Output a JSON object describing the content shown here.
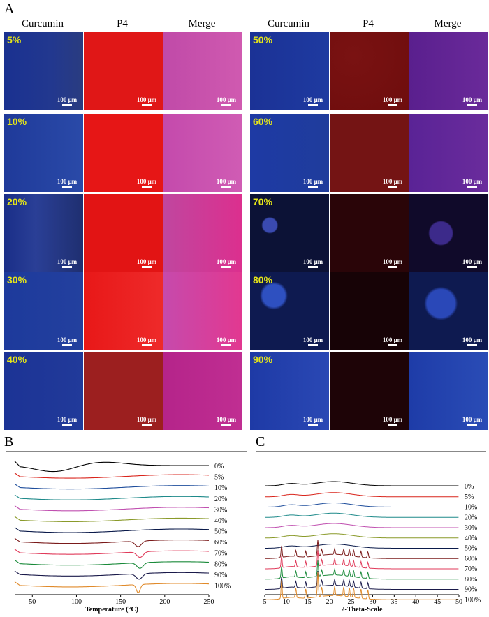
{
  "panel_a": {
    "letter": "A",
    "columns": [
      "Curcumin",
      "P4",
      "Merge"
    ],
    "scale_label": "100 μm",
    "left_rows": [
      "5%",
      "10%",
      "20%",
      "30%",
      "40%"
    ],
    "right_rows": [
      "50%",
      "60%",
      "70%",
      "80%",
      "90%"
    ]
  },
  "panel_b": {
    "letter": "B"
  },
  "panel_c": {
    "letter": "C"
  },
  "chart_data": [
    {
      "type": "line",
      "xlabel": "Temperature (°C)",
      "ylabel": "",
      "xlim": [
        30,
        250
      ],
      "x_ticks": [
        50,
        100,
        150,
        200,
        250
      ],
      "series_labels": [
        "0%",
        "5%",
        "10%",
        "20%",
        "30%",
        "40%",
        "50%",
        "60%",
        "70%",
        "80%",
        "90%",
        "100%"
      ],
      "colors": [
        "#000000",
        "#d9251c",
        "#1f4e9c",
        "#1e8a8a",
        "#c050b0",
        "#8a9a2a",
        "#0a1a4a",
        "#7a1a1a",
        "#e03a5a",
        "#1a8a3a",
        "#1a1a4a",
        "#e08a2a"
      ],
      "thermal_features": [
        {
          "label": "0%",
          "feature": "broad endotherm",
          "x": 75
        },
        {
          "label": "60%",
          "feature": "endotherm",
          "x": 170
        },
        {
          "label": "70%",
          "feature": "endotherm",
          "x": 172
        },
        {
          "label": "80%",
          "feature": "endotherm",
          "x": 172
        },
        {
          "label": "90%",
          "feature": "endotherm",
          "x": 171
        },
        {
          "label": "100%",
          "feature": "sharp endotherm",
          "x": 170
        }
      ]
    },
    {
      "type": "line",
      "xlabel": "2-Theta-Scale",
      "ylabel": "",
      "xlim": [
        5,
        50
      ],
      "x_ticks": [
        5,
        10,
        15,
        20,
        25,
        30,
        35,
        40,
        45,
        50
      ],
      "series_labels": [
        "0%",
        "5%",
        "10%",
        "20%",
        "30%",
        "40%",
        "50%",
        "60%",
        "70%",
        "80%",
        "90%",
        "100%"
      ],
      "colors": [
        "#000000",
        "#d9251c",
        "#1f4e9c",
        "#1e8a8a",
        "#c050b0",
        "#8a9a2a",
        "#0a1a4a",
        "#7a1a1a",
        "#e03a5a",
        "#1a8a3a",
        "#1a1a4a",
        "#e08a2a"
      ],
      "crystalline_peaks_2theta": [
        8.9,
        12.2,
        14.5,
        17.3,
        18.2,
        21.2,
        23.3,
        24.6,
        25.6,
        27.3,
        28.9
      ]
    }
  ]
}
